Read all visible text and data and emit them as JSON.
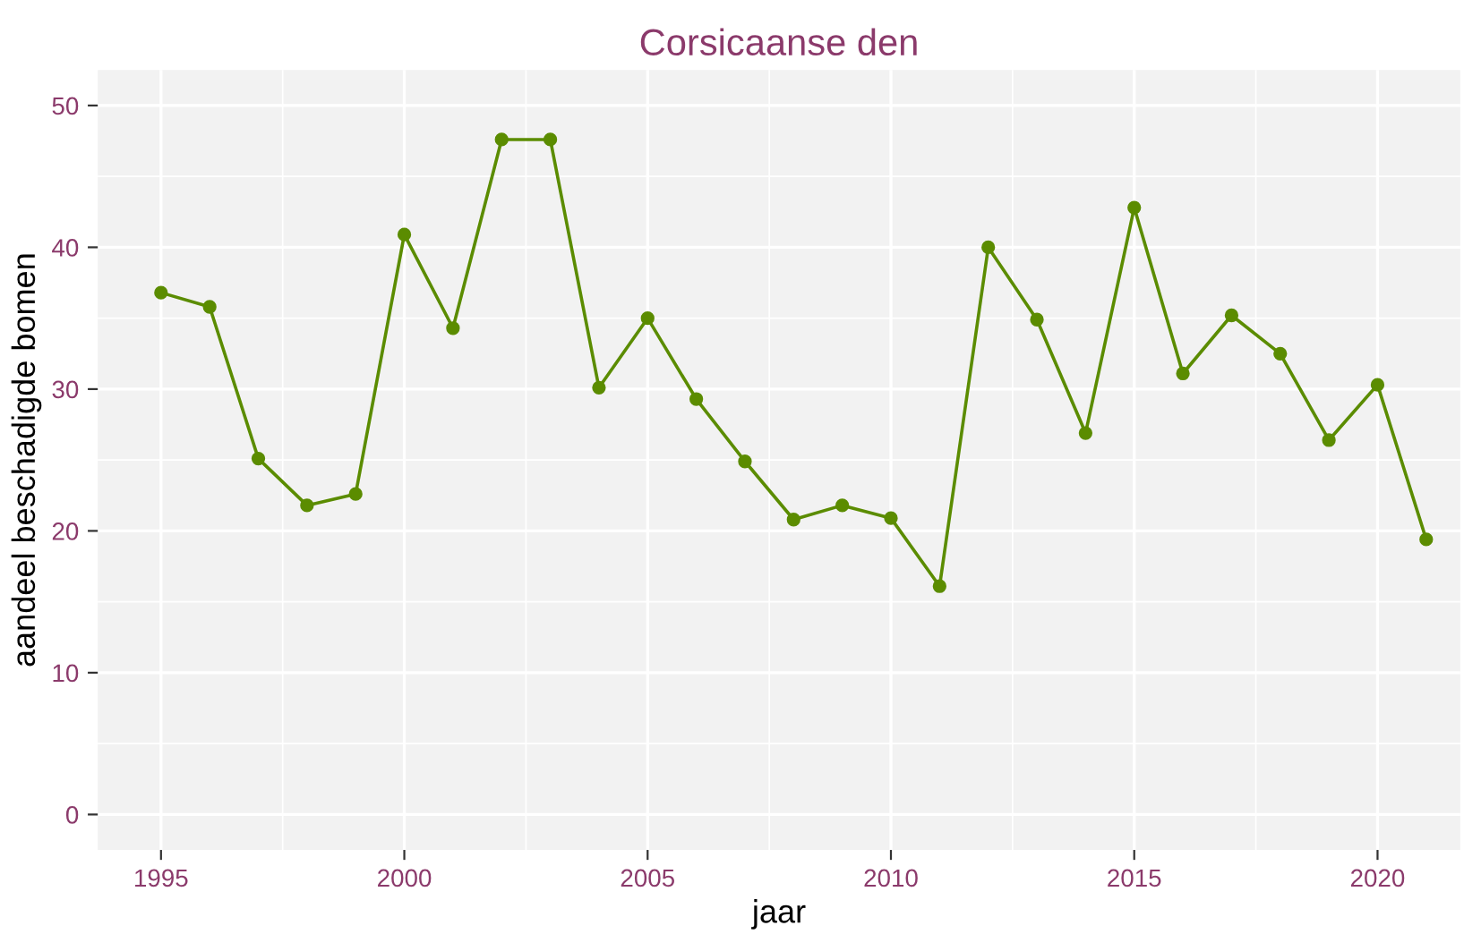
{
  "chart_data": {
    "type": "line",
    "title": "Corsicaanse den",
    "xlabel": "jaar",
    "ylabel": "aandeel beschadigde bomen",
    "x": [
      1995,
      1996,
      1997,
      1998,
      1999,
      2000,
      2001,
      2002,
      2003,
      2004,
      2005,
      2006,
      2007,
      2008,
      2009,
      2010,
      2011,
      2012,
      2013,
      2014,
      2015,
      2016,
      2017,
      2018,
      2019,
      2020,
      2021
    ],
    "series": [
      {
        "color": "#5b8c00",
        "values": [
          36.8,
          35.8,
          25.1,
          21.8,
          22.6,
          40.9,
          34.3,
          47.6,
          47.6,
          30.1,
          35.0,
          29.3,
          24.9,
          20.8,
          21.8,
          20.9,
          16.1,
          40.0,
          34.9,
          26.9,
          42.8,
          31.1,
          35.2,
          32.5,
          26.4,
          30.3,
          19.4
        ]
      }
    ],
    "xlim": [
      1993.7,
      2021.7
    ],
    "ylim": [
      -2.5,
      52.5
    ],
    "xticks": [
      1995,
      2000,
      2005,
      2010,
      2015,
      2020
    ],
    "yticks": [
      0,
      10,
      20,
      30,
      40,
      50
    ],
    "grid": true,
    "marker": "circle",
    "line_style": "solid"
  }
}
